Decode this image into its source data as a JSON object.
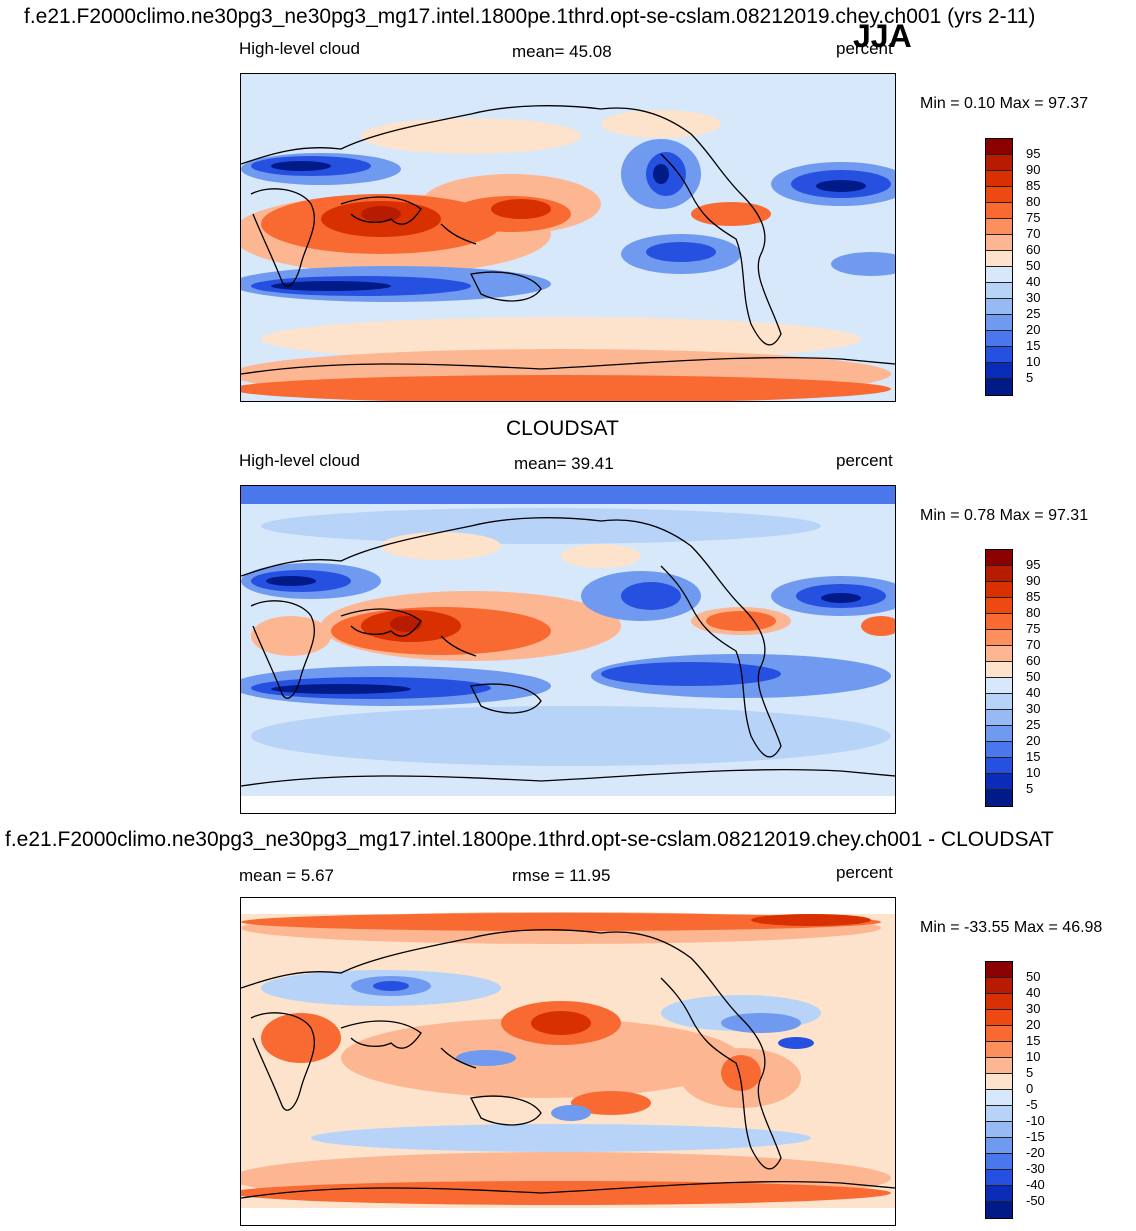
{
  "season": "JJA",
  "panels": [
    {
      "title": "f.e21.F2000climo.ne30pg3_ne30pg3_mg17.intel.1800pe.1thrd.opt-se-cslam.08212019.chey.ch001 (yrs 2-11)",
      "variable": "High-level cloud",
      "stat_text": "mean=  45.08",
      "units": "percent",
      "minmax": "Min =   0.10 Max =  97.37",
      "levels": [
        "95",
        "90",
        "85",
        "80",
        "75",
        "70",
        "60",
        "50",
        "40",
        "30",
        "25",
        "20",
        "15",
        "10",
        "5"
      ],
      "colors": [
        "#8b0000",
        "#b81c00",
        "#d83000",
        "#ec4a12",
        "#f86a32",
        "#fb8f5e",
        "#fdb692",
        "#fde3cc",
        "#d8e8fb",
        "#b8d3f8",
        "#98baf4",
        "#6f9af0",
        "#4a78ec",
        "#2650e0",
        "#0a2cb8",
        "#001a88"
      ]
    },
    {
      "title": "CLOUDSAT",
      "variable": "High-level cloud",
      "stat_text": "mean=  39.41",
      "units": "percent",
      "minmax": "Min =   0.78 Max =  97.31",
      "levels": [
        "95",
        "90",
        "85",
        "80",
        "75",
        "70",
        "60",
        "50",
        "40",
        "30",
        "25",
        "20",
        "15",
        "10",
        "5"
      ],
      "colors": [
        "#8b0000",
        "#b81c00",
        "#d83000",
        "#ec4a12",
        "#f86a32",
        "#fb8f5e",
        "#fdb692",
        "#fde3cc",
        "#d8e8fb",
        "#b8d3f8",
        "#98baf4",
        "#6f9af0",
        "#4a78ec",
        "#2650e0",
        "#0a2cb8",
        "#001a88"
      ]
    },
    {
      "title": "f.e21.F2000climo.ne30pg3_ne30pg3_mg17.intel.1800pe.1thrd.opt-se-cslam.08212019.chey.ch001 - CLOUDSAT",
      "stat_left": "mean =   5.67",
      "stat_text": "rmse =  11.95",
      "units": "percent",
      "minmax": "Min = -33.55 Max =  46.98",
      "levels": [
        "50",
        "40",
        "30",
        "20",
        "15",
        "10",
        "5",
        "0",
        "-5",
        "-10",
        "-15",
        "-20",
        "-30",
        "-40",
        "-50"
      ],
      "colors": [
        "#8b0000",
        "#b81c00",
        "#d83000",
        "#ec4a12",
        "#f86a32",
        "#fb8f5e",
        "#fdb692",
        "#fde3cc",
        "#d8e8fb",
        "#b8d3f8",
        "#98baf4",
        "#6f9af0",
        "#4a78ec",
        "#2650e0",
        "#0a2cb8",
        "#001a88"
      ]
    }
  ]
}
